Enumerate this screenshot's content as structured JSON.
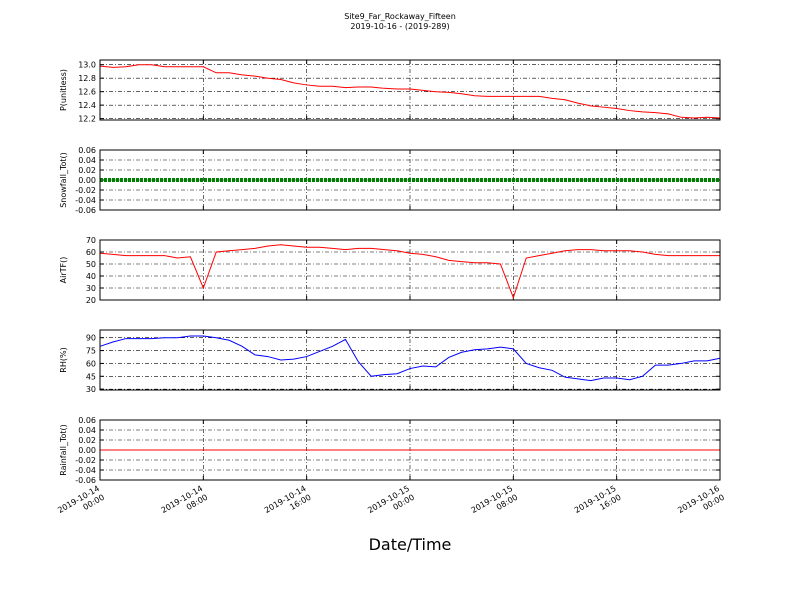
{
  "chart_data": [
    {
      "type": "line",
      "title": "Site9_Far_Rockaway_Fifteen",
      "subtitle": "2019-10-16 - (2019-289)",
      "ylabel": "P(unitless)",
      "x": [
        "2019-10-14 00:00",
        "2019-10-14 01:00",
        "2019-10-14 02:00",
        "2019-10-14 03:00",
        "2019-10-14 04:00",
        "2019-10-14 05:00",
        "2019-10-14 06:00",
        "2019-10-14 07:00",
        "2019-10-14 08:00",
        "2019-10-14 09:00",
        "2019-10-14 10:00",
        "2019-10-14 11:00",
        "2019-10-14 12:00",
        "2019-10-14 13:00",
        "2019-10-14 14:00",
        "2019-10-14 15:00",
        "2019-10-14 16:00",
        "2019-10-14 17:00",
        "2019-10-14 18:00",
        "2019-10-14 19:00",
        "2019-10-14 20:00",
        "2019-10-14 21:00",
        "2019-10-14 22:00",
        "2019-10-14 23:00",
        "2019-10-15 00:00",
        "2019-10-15 01:00",
        "2019-10-15 02:00",
        "2019-10-15 03:00",
        "2019-10-15 04:00",
        "2019-10-15 05:00",
        "2019-10-15 06:00",
        "2019-10-15 07:00",
        "2019-10-15 08:00",
        "2019-10-15 09:00",
        "2019-10-15 10:00",
        "2019-10-15 11:00",
        "2019-10-15 12:00",
        "2019-10-15 13:00",
        "2019-10-15 14:00",
        "2019-10-15 15:00",
        "2019-10-15 16:00",
        "2019-10-15 17:00",
        "2019-10-15 18:00",
        "2019-10-15 19:00",
        "2019-10-15 20:00",
        "2019-10-15 21:00",
        "2019-10-15 22:00",
        "2019-10-15 23:00",
        "2019-10-16 00:00"
      ],
      "series": [
        {
          "name": "P",
          "color": "#ff0000",
          "values": [
            12.98,
            12.96,
            12.97,
            13.0,
            13.0,
            12.97,
            12.97,
            12.97,
            12.97,
            12.88,
            12.88,
            12.85,
            12.83,
            12.8,
            12.78,
            12.73,
            12.7,
            12.68,
            12.68,
            12.66,
            12.67,
            12.67,
            12.65,
            12.64,
            12.64,
            12.62,
            12.6,
            12.59,
            12.57,
            12.54,
            12.53,
            12.53,
            12.53,
            12.53,
            12.53,
            12.5,
            12.48,
            12.43,
            12.39,
            12.37,
            12.35,
            12.32,
            12.3,
            12.29,
            12.27,
            12.22,
            12.21,
            12.22,
            12.21
          ]
        }
      ],
      "xlim": [
        "2019-10-14 00:00",
        "2019-10-16 00:00"
      ],
      "xticks": [
        "2019-10-14 00:00",
        "2019-10-14 08:00",
        "2019-10-14 16:00",
        "2019-10-15 00:00",
        "2019-10-15 08:00",
        "2019-10-15 16:00",
        "2019-10-16 00:00"
      ],
      "ylim": [
        12.18,
        13.07
      ],
      "yticks": [
        12.2,
        12.4,
        12.6,
        12.8,
        {
          "value": 13,
          "label": "13.0"
        }
      ],
      "grid": true
    },
    {
      "type": "line",
      "ylabel": "Snowfall_Tot()",
      "x": [
        "2019-10-14 00:00",
        "2019-10-14 01:00",
        "2019-10-14 02:00",
        "2019-10-14 03:00",
        "2019-10-14 04:00",
        "2019-10-14 05:00",
        "2019-10-14 06:00",
        "2019-10-14 07:00",
        "2019-10-14 08:00",
        "2019-10-14 09:00",
        "2019-10-14 10:00",
        "2019-10-14 11:00",
        "2019-10-14 12:00",
        "2019-10-14 13:00",
        "2019-10-14 14:00",
        "2019-10-14 15:00",
        "2019-10-14 16:00",
        "2019-10-14 17:00",
        "2019-10-14 18:00",
        "2019-10-14 19:00",
        "2019-10-14 20:00",
        "2019-10-14 21:00",
        "2019-10-14 22:00",
        "2019-10-14 23:00",
        "2019-10-15 00:00",
        "2019-10-15 01:00",
        "2019-10-15 02:00",
        "2019-10-15 03:00",
        "2019-10-15 04:00",
        "2019-10-15 05:00",
        "2019-10-15 06:00",
        "2019-10-15 07:00",
        "2019-10-15 08:00",
        "2019-10-15 09:00",
        "2019-10-15 10:00",
        "2019-10-15 11:00",
        "2019-10-15 12:00",
        "2019-10-15 13:00",
        "2019-10-15 14:00",
        "2019-10-15 15:00",
        "2019-10-15 16:00",
        "2019-10-15 17:00",
        "2019-10-15 18:00",
        "2019-10-15 19:00",
        "2019-10-15 20:00",
        "2019-10-15 21:00",
        "2019-10-15 22:00",
        "2019-10-15 23:00",
        "2019-10-16 00:00"
      ],
      "series": [
        {
          "name": "Snowfall_Tot",
          "color": "#008000",
          "values": [
            0,
            0,
            0,
            0,
            0,
            0,
            0,
            0,
            0,
            0,
            0,
            0,
            0,
            0,
            0,
            0,
            0,
            0,
            0,
            0,
            0,
            0,
            0,
            0,
            0,
            0,
            0,
            0,
            0,
            0,
            0,
            0,
            0,
            0,
            0,
            0,
            0,
            0,
            0,
            0,
            0,
            0,
            0,
            0,
            0,
            0,
            0,
            0,
            0
          ]
        }
      ],
      "xlim": [
        "2019-10-14 00:00",
        "2019-10-16 00:00"
      ],
      "xticks": [
        "2019-10-14 00:00",
        "2019-10-14 08:00",
        "2019-10-14 16:00",
        "2019-10-15 00:00",
        "2019-10-15 08:00",
        "2019-10-15 16:00",
        "2019-10-16 00:00"
      ],
      "ylim": [
        -0.06,
        0.06
      ],
      "yticks": [
        -0.06,
        -0.04,
        -0.02,
        {
          "value": 0,
          "label": "0.00"
        },
        0.02,
        0.04,
        0.06
      ],
      "grid": true
    },
    {
      "type": "line",
      "ylabel": "AirTF()",
      "x": [
        "2019-10-14 00:00",
        "2019-10-14 01:00",
        "2019-10-14 02:00",
        "2019-10-14 03:00",
        "2019-10-14 04:00",
        "2019-10-14 05:00",
        "2019-10-14 06:00",
        "2019-10-14 07:00",
        "2019-10-14 08:00",
        "2019-10-14 09:00",
        "2019-10-14 10:00",
        "2019-10-14 11:00",
        "2019-10-14 12:00",
        "2019-10-14 13:00",
        "2019-10-14 14:00",
        "2019-10-14 15:00",
        "2019-10-14 16:00",
        "2019-10-14 17:00",
        "2019-10-14 18:00",
        "2019-10-14 19:00",
        "2019-10-14 20:00",
        "2019-10-14 21:00",
        "2019-10-14 22:00",
        "2019-10-14 23:00",
        "2019-10-15 00:00",
        "2019-10-15 01:00",
        "2019-10-15 02:00",
        "2019-10-15 03:00",
        "2019-10-15 04:00",
        "2019-10-15 05:00",
        "2019-10-15 06:00",
        "2019-10-15 07:00",
        "2019-10-15 08:00",
        "2019-10-15 09:00",
        "2019-10-15 10:00",
        "2019-10-15 11:00",
        "2019-10-15 12:00",
        "2019-10-15 13:00",
        "2019-10-15 14:00",
        "2019-10-15 15:00",
        "2019-10-15 16:00",
        "2019-10-15 17:00",
        "2019-10-15 18:00",
        "2019-10-15 19:00",
        "2019-10-15 20:00",
        "2019-10-15 21:00",
        "2019-10-15 22:00",
        "2019-10-15 23:00",
        "2019-10-16 00:00"
      ],
      "series": [
        {
          "name": "AirTF",
          "color": "#ff0000",
          "values": [
            59,
            58,
            57,
            57,
            57,
            57,
            55,
            56,
            30,
            60,
            61,
            62,
            63,
            65,
            66,
            65,
            64,
            64,
            63,
            62,
            63,
            63,
            62,
            61,
            59,
            58,
            56,
            53,
            52,
            51,
            51,
            50,
            22,
            55,
            57,
            59,
            61,
            62,
            62,
            61,
            61,
            61,
            60,
            58,
            57,
            57,
            57,
            57,
            57
          ]
        }
      ],
      "xlim": [
        "2019-10-14 00:00",
        "2019-10-16 00:00"
      ],
      "xticks": [
        "2019-10-14 00:00",
        "2019-10-14 08:00",
        "2019-10-14 16:00",
        "2019-10-15 00:00",
        "2019-10-15 08:00",
        "2019-10-15 16:00",
        "2019-10-16 00:00"
      ],
      "ylim": [
        20,
        70
      ],
      "yticks": [
        20,
        30,
        40,
        50,
        60,
        70
      ],
      "grid": true
    },
    {
      "type": "line",
      "ylabel": "RH(%)",
      "x": [
        "2019-10-14 00:00",
        "2019-10-14 01:00",
        "2019-10-14 02:00",
        "2019-10-14 03:00",
        "2019-10-14 04:00",
        "2019-10-14 05:00",
        "2019-10-14 06:00",
        "2019-10-14 07:00",
        "2019-10-14 08:00",
        "2019-10-14 09:00",
        "2019-10-14 10:00",
        "2019-10-14 11:00",
        "2019-10-14 12:00",
        "2019-10-14 13:00",
        "2019-10-14 14:00",
        "2019-10-14 15:00",
        "2019-10-14 16:00",
        "2019-10-14 17:00",
        "2019-10-14 18:00",
        "2019-10-14 19:00",
        "2019-10-14 20:00",
        "2019-10-14 21:00",
        "2019-10-14 22:00",
        "2019-10-14 23:00",
        "2019-10-15 00:00",
        "2019-10-15 01:00",
        "2019-10-15 02:00",
        "2019-10-15 03:00",
        "2019-10-15 04:00",
        "2019-10-15 05:00",
        "2019-10-15 06:00",
        "2019-10-15 07:00",
        "2019-10-15 08:00",
        "2019-10-15 09:00",
        "2019-10-15 10:00",
        "2019-10-15 11:00",
        "2019-10-15 12:00",
        "2019-10-15 13:00",
        "2019-10-15 14:00",
        "2019-10-15 15:00",
        "2019-10-15 16:00",
        "2019-10-15 17:00",
        "2019-10-15 18:00",
        "2019-10-15 19:00",
        "2019-10-15 20:00",
        "2019-10-15 21:00",
        "2019-10-15 22:00",
        "2019-10-15 23:00",
        "2019-10-16 00:00"
      ],
      "series": [
        {
          "name": "RH",
          "color": "#0000ff",
          "values": [
            80,
            85,
            89,
            89,
            89,
            90,
            90,
            92,
            92,
            90,
            87,
            80,
            70,
            68,
            64,
            65,
            68,
            74,
            80,
            88,
            62,
            45,
            47,
            48,
            54,
            57,
            56,
            67,
            73,
            76,
            77,
            79,
            77,
            60,
            55,
            52,
            44,
            42,
            40,
            43,
            43,
            41,
            45,
            58,
            58,
            60,
            63,
            63,
            66
          ]
        }
      ],
      "xlim": [
        "2019-10-14 00:00",
        "2019-10-16 00:00"
      ],
      "xticks": [
        "2019-10-14 00:00",
        "2019-10-14 08:00",
        "2019-10-14 16:00",
        "2019-10-15 00:00",
        "2019-10-15 08:00",
        "2019-10-15 16:00",
        "2019-10-16 00:00"
      ],
      "ylim": [
        29,
        99
      ],
      "yticks": [
        30,
        45,
        60,
        75,
        90
      ],
      "grid": true
    },
    {
      "type": "line",
      "ylabel": "Rainfall_Tot()",
      "xlabel": "Date/Time",
      "x": [
        "2019-10-14 00:00",
        "2019-10-14 01:00",
        "2019-10-14 02:00",
        "2019-10-14 03:00",
        "2019-10-14 04:00",
        "2019-10-14 05:00",
        "2019-10-14 06:00",
        "2019-10-14 07:00",
        "2019-10-14 08:00",
        "2019-10-14 09:00",
        "2019-10-14 10:00",
        "2019-10-14 11:00",
        "2019-10-14 12:00",
        "2019-10-14 13:00",
        "2019-10-14 14:00",
        "2019-10-14 15:00",
        "2019-10-14 16:00",
        "2019-10-14 17:00",
        "2019-10-14 18:00",
        "2019-10-14 19:00",
        "2019-10-14 20:00",
        "2019-10-14 21:00",
        "2019-10-14 22:00",
        "2019-10-14 23:00",
        "2019-10-15 00:00",
        "2019-10-15 01:00",
        "2019-10-15 02:00",
        "2019-10-15 03:00",
        "2019-10-15 04:00",
        "2019-10-15 05:00",
        "2019-10-15 06:00",
        "2019-10-15 07:00",
        "2019-10-15 08:00",
        "2019-10-15 09:00",
        "2019-10-15 10:00",
        "2019-10-15 11:00",
        "2019-10-15 12:00",
        "2019-10-15 13:00",
        "2019-10-15 14:00",
        "2019-10-15 15:00",
        "2019-10-15 16:00",
        "2019-10-15 17:00",
        "2019-10-15 18:00",
        "2019-10-15 19:00",
        "2019-10-15 20:00",
        "2019-10-15 21:00",
        "2019-10-15 22:00",
        "2019-10-15 23:00",
        "2019-10-16 00:00"
      ],
      "series": [
        {
          "name": "Rainfall_Tot",
          "color": "#ff0000",
          "values": [
            0,
            0,
            0,
            0,
            0,
            0,
            0,
            0,
            0,
            0,
            0,
            0,
            0,
            0,
            0,
            0,
            0,
            0,
            0,
            0,
            0,
            0,
            0,
            0,
            0,
            0,
            0,
            0,
            0,
            0,
            0,
            0,
            0,
            0,
            0,
            0,
            0,
            0,
            0,
            0,
            0,
            0,
            0,
            0,
            0,
            0,
            0,
            0,
            0
          ]
        }
      ],
      "xlim": [
        "2019-10-14 00:00",
        "2019-10-16 00:00"
      ],
      "xticks": [
        "2019-10-14 00:00",
        "2019-10-14 08:00",
        "2019-10-14 16:00",
        "2019-10-15 00:00",
        "2019-10-15 08:00",
        "2019-10-15 16:00",
        "2019-10-16 00:00"
      ],
      "ylim": [
        -0.06,
        0.06
      ],
      "yticks": [
        -0.06,
        -0.04,
        -0.02,
        {
          "value": 0,
          "label": "0.00"
        },
        0.02,
        0.04,
        0.06
      ],
      "grid": true,
      "show_xtick_labels": true
    }
  ]
}
